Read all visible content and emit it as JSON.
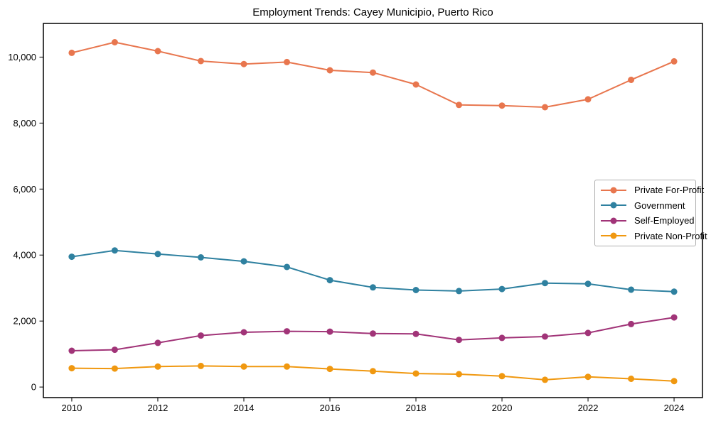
{
  "chart_data": {
    "type": "line",
    "title": "Employment Trends: Cayey Municipio, Puerto Rico",
    "xlabel": "",
    "ylabel": "",
    "grid": false,
    "legend_position": "center right",
    "xlim": [
      2009.34,
      2024.66
    ],
    "ylim": [
      -320,
      11020
    ],
    "x": [
      2010,
      2011,
      2012,
      2013,
      2014,
      2015,
      2016,
      2017,
      2018,
      2019,
      2020,
      2021,
      2022,
      2023,
      2024
    ],
    "x_ticks": [
      {
        "v": 2010,
        "label": "2010"
      },
      {
        "v": 2012,
        "label": "2012"
      },
      {
        "v": 2014,
        "label": "2014"
      },
      {
        "v": 2016,
        "label": "2016"
      },
      {
        "v": 2018,
        "label": "2018"
      },
      {
        "v": 2020,
        "label": "2020"
      },
      {
        "v": 2022,
        "label": "2022"
      },
      {
        "v": 2024,
        "label": "2024"
      }
    ],
    "y_ticks": [
      {
        "v": 0,
        "label": "0"
      },
      {
        "v": 2000,
        "label": "2,000"
      },
      {
        "v": 4000,
        "label": "4,000"
      },
      {
        "v": 6000,
        "label": "6,000"
      },
      {
        "v": 8000,
        "label": "8,000"
      },
      {
        "v": 10000,
        "label": "10,000"
      }
    ],
    "series": [
      {
        "name": "Private For-Profit",
        "color": "#e8764e",
        "values": [
          10130,
          10450,
          10180,
          9880,
          9790,
          9850,
          9600,
          9530,
          9170,
          8550,
          8530,
          8480,
          8720,
          9310,
          9870
        ]
      },
      {
        "name": "Government",
        "color": "#2f81a0",
        "values": [
          3950,
          4140,
          4030,
          3930,
          3810,
          3640,
          3240,
          3020,
          2940,
          2910,
          2970,
          3150,
          3130,
          2950,
          2890
        ]
      },
      {
        "name": "Self-Employed",
        "color": "#a13478",
        "values": [
          1100,
          1130,
          1340,
          1560,
          1660,
          1690,
          1680,
          1620,
          1610,
          1430,
          1490,
          1530,
          1640,
          1910,
          2110
        ]
      },
      {
        "name": "Private Non-Profit",
        "color": "#f09810",
        "values": [
          570,
          560,
          620,
          640,
          620,
          620,
          550,
          480,
          410,
          390,
          330,
          220,
          310,
          250,
          180
        ]
      }
    ]
  }
}
